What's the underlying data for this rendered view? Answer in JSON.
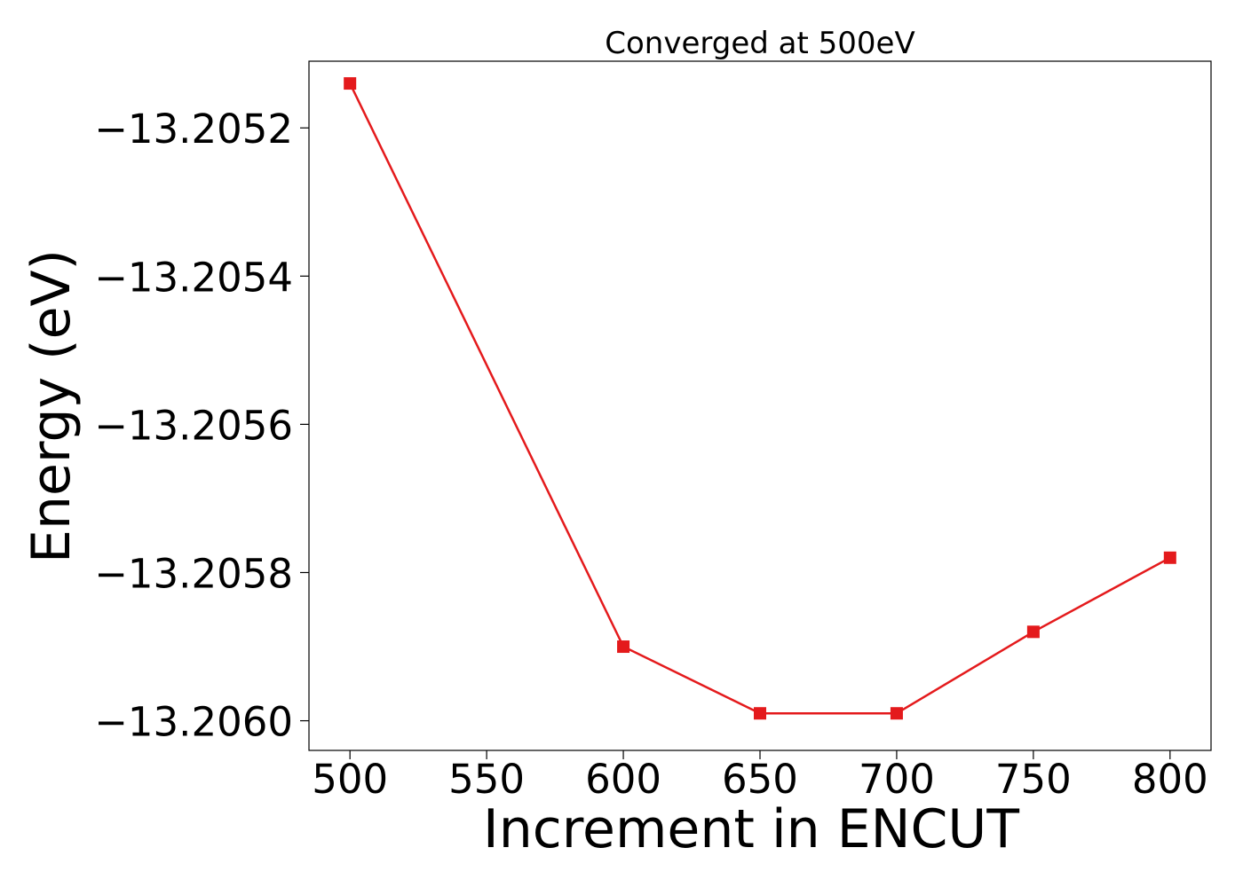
{
  "chart_data": {
    "type": "line",
    "title": "Converged at 500eV",
    "xlabel": "Increment in ENCUT",
    "ylabel": "Energy (eV)",
    "xlim": [
      485,
      815
    ],
    "ylim": [
      -13.20604,
      -13.20511
    ],
    "x_ticks": [
      500,
      550,
      600,
      650,
      700,
      750,
      800
    ],
    "x_tick_labels": [
      "500",
      "550",
      "600",
      "650",
      "700",
      "750",
      "800"
    ],
    "y_ticks": [
      -13.2052,
      -13.2054,
      -13.2056,
      -13.2058,
      -13.206
    ],
    "y_tick_labels": [
      "−13.2052",
      "−13.2054",
      "−13.2056",
      "−13.2058",
      "−13.2060"
    ],
    "grid": false,
    "marker": "square",
    "series": [
      {
        "color": "#e41a1c",
        "x": [
          500,
          600,
          650,
          700,
          750,
          800
        ],
        "y": [
          -13.20514,
          -13.2059,
          -13.20599,
          -13.20599,
          -13.20588,
          -13.20578
        ]
      }
    ]
  }
}
